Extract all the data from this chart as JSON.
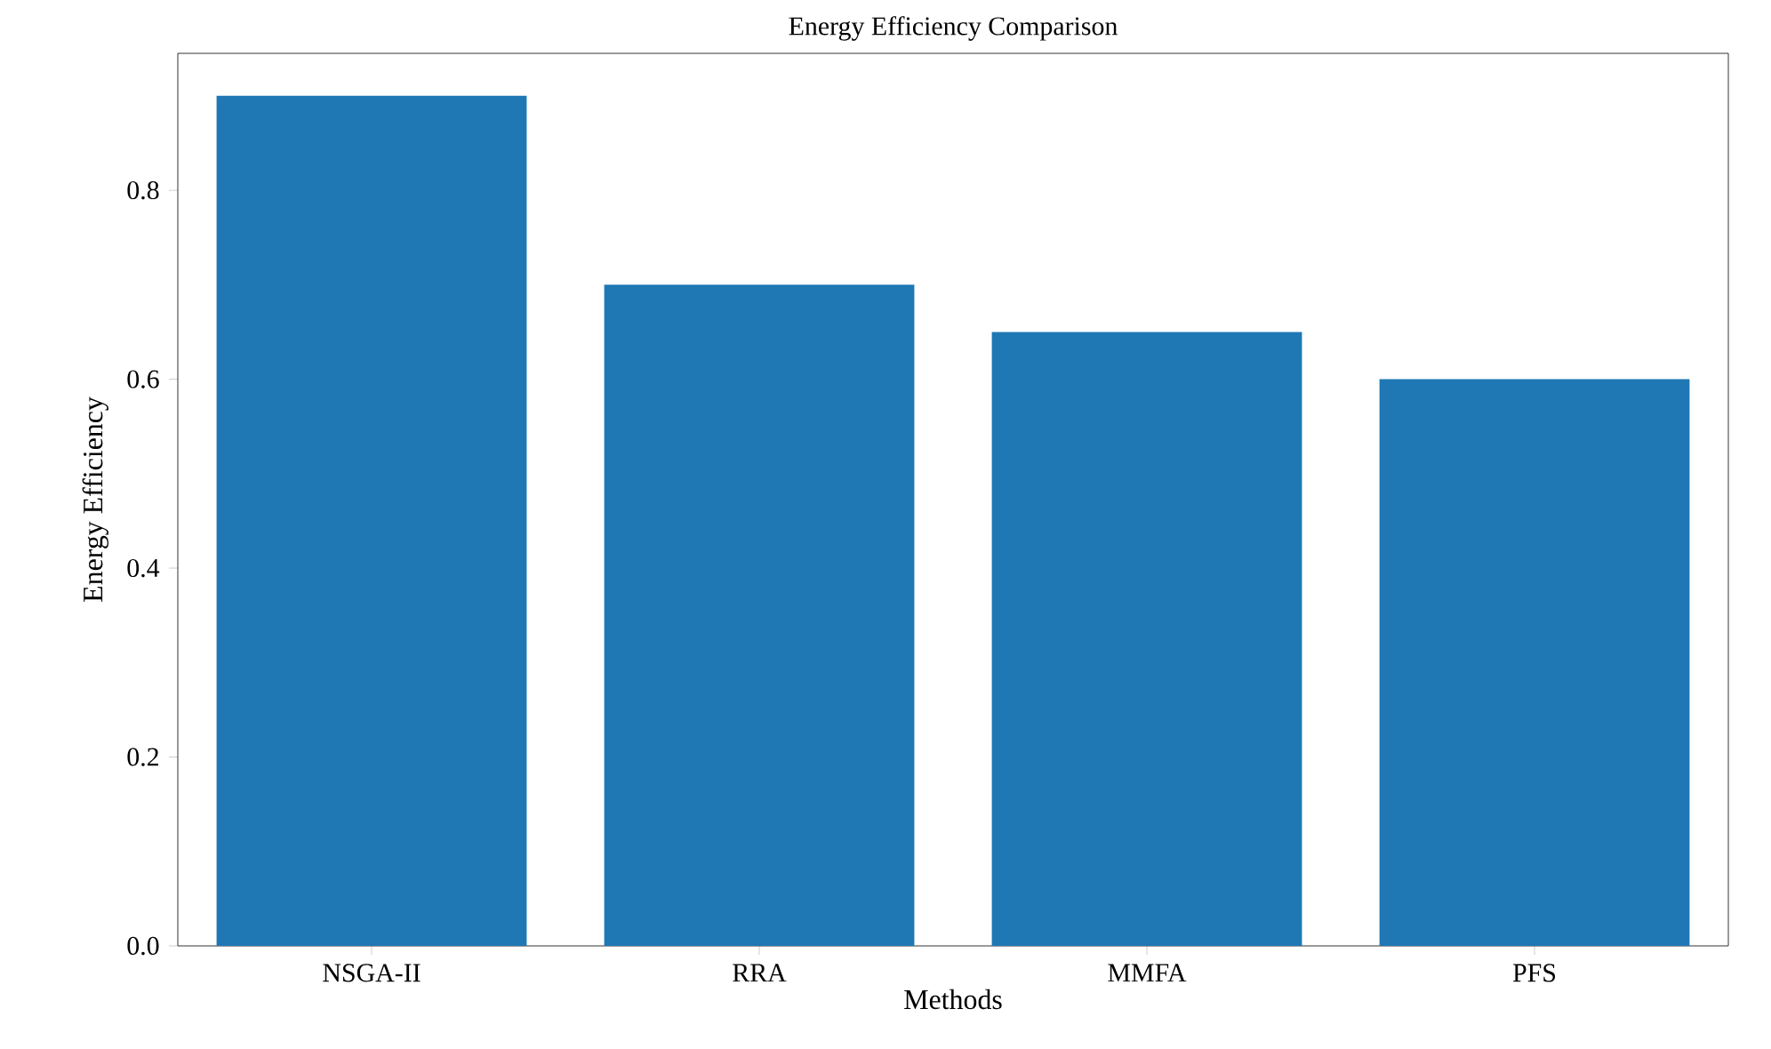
{
  "chart_data": {
    "type": "bar",
    "title": "Energy Efficiency Comparison",
    "xlabel": "Methods",
    "ylabel": "Energy Efficiency",
    "categories": [
      "NSGA-II",
      "RRA",
      "MMFA",
      "PFS"
    ],
    "values": [
      0.9,
      0.7,
      0.65,
      0.6
    ],
    "color": "#1f77b4",
    "ylim": [
      0,
      0.945
    ],
    "yticks": [
      {
        "value": 0,
        "label": "0.0"
      },
      0.2,
      0.4,
      0.6,
      0.8
    ]
  }
}
